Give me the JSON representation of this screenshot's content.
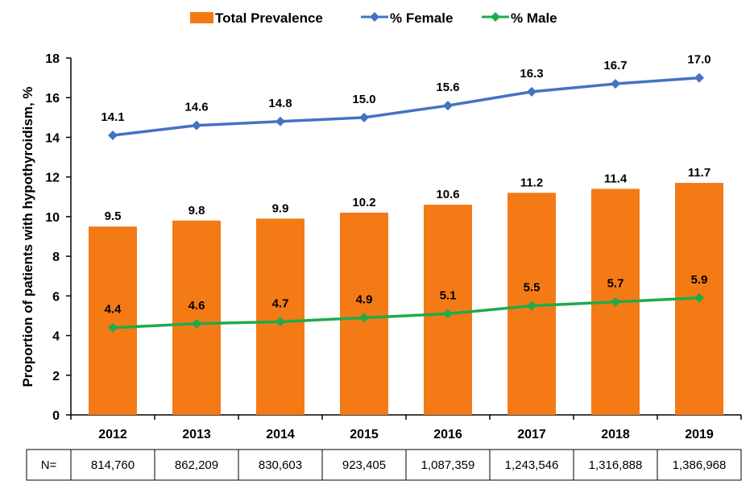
{
  "chart_data": {
    "type": "bar",
    "title": "",
    "xlabel": "",
    "ylabel": "Proportion of patients with hypothyroidism, %",
    "ylim": [
      0,
      18
    ],
    "yticks": [
      "0",
      "2",
      "4",
      "6",
      "8",
      "10",
      "12",
      "14",
      "16",
      "18"
    ],
    "categories": [
      "2012",
      "2013",
      "2014",
      "2015",
      "2016",
      "2017",
      "2018",
      "2019"
    ],
    "series": [
      {
        "name": "Total Prevalence",
        "type": "bar",
        "color": "#F47A16",
        "values": [
          9.5,
          9.8,
          9.9,
          10.2,
          10.6,
          11.2,
          11.4,
          11.7
        ],
        "labels": [
          "9.5",
          "9.8",
          "9.9",
          "10.2",
          "10.6",
          "11.2",
          "11.4",
          "11.7"
        ]
      },
      {
        "name": "% Female",
        "type": "line",
        "color": "#4472C4",
        "values": [
          14.1,
          14.6,
          14.8,
          15.0,
          15.6,
          16.3,
          16.7,
          17.0
        ],
        "labels": [
          "14.1",
          "14.6",
          "14.8",
          "15.0",
          "15.6",
          "16.3",
          "16.7",
          "17.0"
        ]
      },
      {
        "name": "% Male",
        "type": "line",
        "color": "#1EAB4B",
        "values": [
          4.4,
          4.6,
          4.7,
          4.9,
          5.1,
          5.5,
          5.7,
          5.9
        ],
        "labels": [
          "4.4",
          "4.6",
          "4.7",
          "4.9",
          "5.1",
          "5.5",
          "5.7",
          "5.9"
        ]
      }
    ],
    "legend": {
      "placement": "top",
      "items": [
        "Total Prevalence",
        "% Female",
        "% Male"
      ]
    },
    "n_table": {
      "label": "N=",
      "values": [
        "814,760",
        "862,209",
        "830,603",
        "923,405",
        "1,087,359",
        "1,243,546",
        "1,316,888",
        "1,386,968"
      ]
    }
  }
}
